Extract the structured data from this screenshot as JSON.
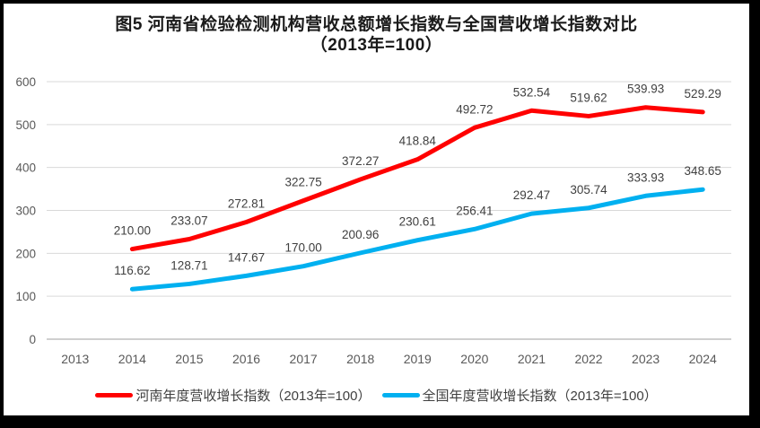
{
  "title": {
    "line1": "图5  河南省检验检测机构营收总额增长指数与全国营收增长指数对比",
    "line2": "（2013年=100）"
  },
  "chart_data": {
    "type": "line",
    "categories": [
      "2013",
      "2014",
      "2015",
      "2016",
      "2017",
      "2018",
      "2019",
      "2020",
      "2021",
      "2022",
      "2023",
      "2024"
    ],
    "series": [
      {
        "name": "河南年度营收增长指数（2013年=100）",
        "color": "#FF0000",
        "values": [
          null,
          210.0,
          233.07,
          272.81,
          322.75,
          372.27,
          418.84,
          492.72,
          532.54,
          519.62,
          539.93,
          529.29
        ]
      },
      {
        "name": "全国年度营收增长指数（2013年=100）",
        "color": "#00B0F0",
        "values": [
          null,
          116.62,
          128.71,
          147.67,
          170.0,
          200.96,
          230.61,
          256.41,
          292.47,
          305.74,
          333.93,
          348.65
        ]
      }
    ],
    "y_ticks": [
      0,
      100,
      200,
      300,
      400,
      500,
      600
    ],
    "ylim": [
      0,
      600
    ],
    "grid": true,
    "data_labels": true,
    "data_label_decimals": 2,
    "legend_position": "bottom",
    "xlabel": "",
    "ylabel": ""
  },
  "colors": {
    "grid": "#D9D9D9",
    "axis_line": "#BFBFBF",
    "axis_text": "#595959",
    "label_text": "#404040",
    "panel_bg": "#FFFFFF",
    "frame_bg": "#000000"
  }
}
